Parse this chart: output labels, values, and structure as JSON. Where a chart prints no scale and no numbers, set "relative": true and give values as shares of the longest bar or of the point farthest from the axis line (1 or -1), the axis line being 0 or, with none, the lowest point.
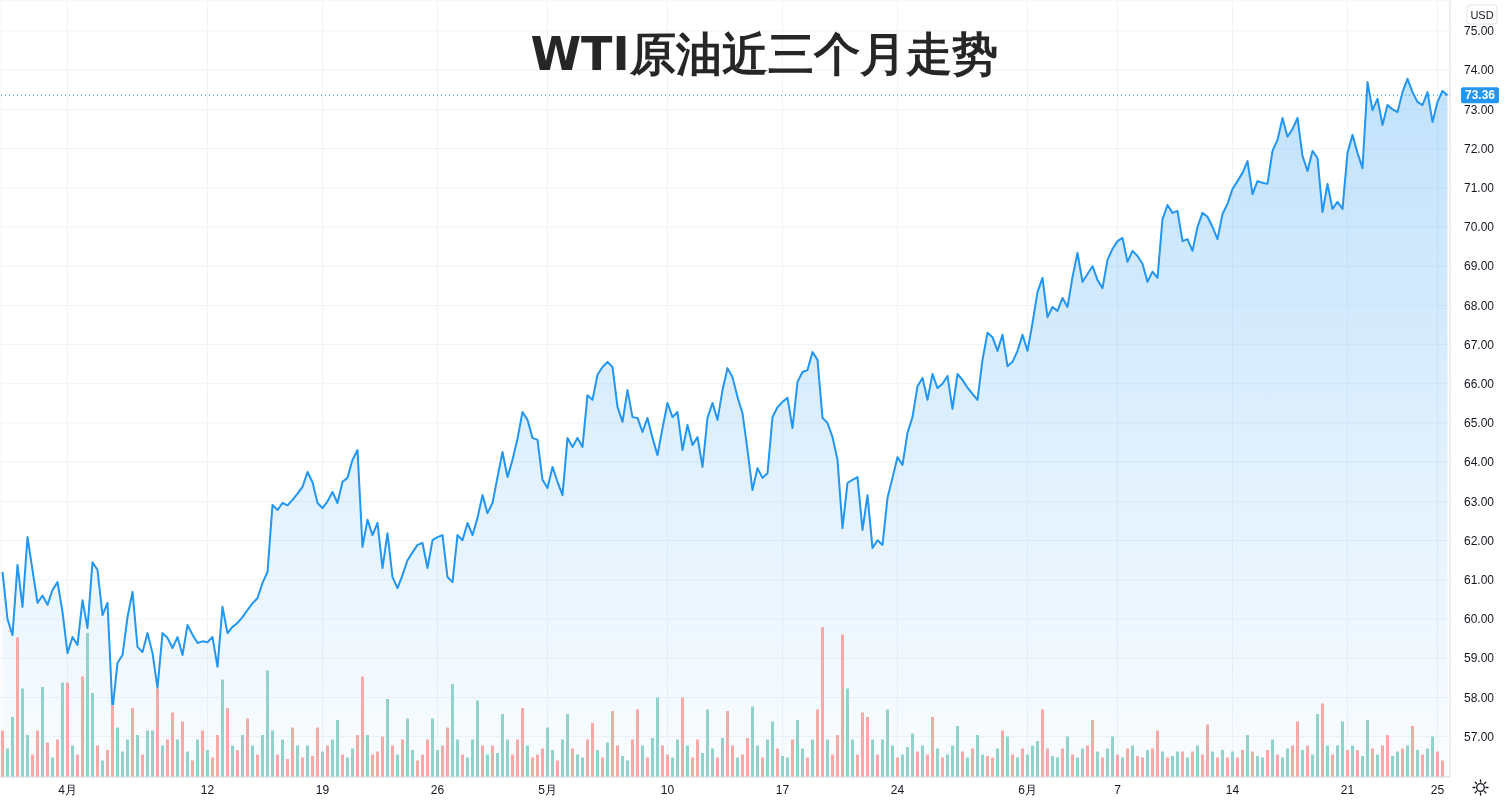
{
  "chart_data": [
    {
      "type": "area",
      "title": "WTI原油近三个月走势",
      "ylabel": "USD",
      "color": "#2196f3",
      "grid": true,
      "categories": [
        null,
        null,
        null,
        null,
        null,
        null,
        null,
        null,
        null,
        null,
        null,
        null,
        null,
        "4月",
        null,
        null,
        null,
        null,
        null,
        null,
        null,
        null,
        null,
        null,
        null,
        null,
        null,
        null,
        null,
        null,
        null,
        null,
        null,
        null,
        null,
        null,
        null,
        null,
        null,
        null,
        null,
        "12",
        null,
        null,
        null,
        null,
        null,
        null,
        null,
        null,
        null,
        null,
        null,
        null,
        null,
        null,
        null,
        null,
        null,
        null,
        null,
        null,
        null,
        null,
        "19",
        null,
        null,
        null,
        null,
        null,
        null,
        null,
        null,
        null,
        null,
        null,
        null,
        null,
        null,
        null,
        null,
        null,
        null,
        null,
        null,
        null,
        null,
        "26",
        null,
        null,
        null,
        null,
        null,
        null,
        null,
        null,
        null,
        null,
        null,
        null,
        null,
        null,
        null,
        null,
        null,
        null,
        null,
        null,
        null,
        "5月",
        null,
        null,
        null,
        null,
        null,
        null,
        null,
        null,
        null,
        null,
        null,
        null,
        null,
        null,
        null,
        null,
        null,
        null,
        null,
        null,
        null,
        null,
        null,
        "10",
        null,
        null,
        null,
        null,
        null,
        null,
        null,
        null,
        null,
        null,
        null,
        null,
        null,
        null,
        null,
        null,
        null,
        null,
        null,
        null,
        null,
        null,
        "17",
        null,
        null,
        null,
        null,
        null,
        null,
        null,
        null,
        null,
        null,
        null,
        null,
        null,
        null,
        null,
        null,
        null,
        null,
        null,
        null,
        null,
        null,
        "24",
        null,
        null,
        null,
        null,
        null,
        null,
        null,
        null,
        null,
        null,
        null,
        null,
        null,
        null,
        null,
        null,
        null,
        null,
        null,
        null,
        null,
        null,
        null,
        null,
        null,
        "6月",
        null,
        null,
        null,
        null,
        null,
        null,
        null,
        null,
        null,
        null,
        null,
        null,
        null,
        null,
        null,
        null,
        null,
        "7",
        null,
        null,
        null,
        null,
        null,
        null,
        null,
        null,
        null,
        null,
        null,
        null,
        null,
        null,
        null,
        null,
        null,
        null,
        null,
        null,
        null,
        null,
        "14",
        null,
        null,
        null,
        null,
        null,
        null,
        null,
        null,
        null,
        null,
        null,
        null,
        null,
        null,
        null,
        null,
        null,
        null,
        null,
        null,
        null,
        null,
        "21",
        null,
        null,
        null,
        null,
        null,
        null,
        null,
        null,
        null,
        null,
        null,
        null,
        null,
        null,
        null,
        null,
        null,
        "25",
        null,
        null
      ],
      "values": [
        61.2,
        60.0,
        59.59,
        61.38,
        60.31,
        62.09,
        61.25,
        60.41,
        60.6,
        60.36,
        60.74,
        60.94,
        60.18,
        59.13,
        59.54,
        59.34,
        60.48,
        59.77,
        61.45,
        61.25,
        60.1,
        60.41,
        57.68,
        58.88,
        59.08,
        60.05,
        60.69,
        59.29,
        59.16,
        59.64,
        59.13,
        58.24,
        59.64,
        59.52,
        59.26,
        59.54,
        59.08,
        59.85,
        59.6,
        59.39,
        59.43,
        59.41,
        59.54,
        58.78,
        60.31,
        59.64,
        59.8,
        59.9,
        60.05,
        60.23,
        60.4,
        60.53,
        60.92,
        61.2,
        62.91,
        62.78,
        62.96,
        62.9,
        63.04,
        63.2,
        63.37,
        63.75,
        63.49,
        62.96,
        62.83,
        63.0,
        63.24,
        62.96,
        63.5,
        63.6,
        64.06,
        64.31,
        61.84,
        62.53,
        62.14,
        62.45,
        61.3,
        62.19,
        61.07,
        60.79,
        61.12,
        61.5,
        61.7,
        61.89,
        61.94,
        61.3,
        62.01,
        62.09,
        62.14,
        61.07,
        60.94,
        62.14,
        62.01,
        62.45,
        62.14,
        62.58,
        63.16,
        62.7,
        62.96,
        63.62,
        64.26,
        63.62,
        64.06,
        64.6,
        65.28,
        65.08,
        64.62,
        64.57,
        63.55,
        63.34,
        63.88,
        63.5,
        63.16,
        64.62,
        64.39,
        64.62,
        64.39,
        65.71,
        65.59,
        66.23,
        66.43,
        66.56,
        66.43,
        65.41,
        65.03,
        65.84,
        65.15,
        65.13,
        64.77,
        65.13,
        64.62,
        64.18,
        64.87,
        65.51,
        65.15,
        65.28,
        64.31,
        64.95,
        64.44,
        64.64,
        63.88,
        65.13,
        65.51,
        65.08,
        65.84,
        66.4,
        66.17,
        65.66,
        65.25,
        64.31,
        63.29,
        63.85,
        63.6,
        63.72,
        65.15,
        65.4,
        65.54,
        65.64,
        64.87,
        66.05,
        66.3,
        66.35,
        66.81,
        66.61,
        65.13,
        65.0,
        64.64,
        64.06,
        62.32,
        63.47,
        63.55,
        63.62,
        62.27,
        63.16,
        61.81,
        62.01,
        61.89,
        63.09,
        63.6,
        64.13,
        63.93,
        64.75,
        65.15,
        65.94,
        66.15,
        65.59,
        66.25,
        65.89,
        66.0,
        66.2,
        65.36,
        66.25,
        66.1,
        65.9,
        65.74,
        65.59,
        66.61,
        67.3,
        67.19,
        66.84,
        67.25,
        66.45,
        66.56,
        66.84,
        67.25,
        66.84,
        67.55,
        68.34,
        68.7,
        67.7,
        67.96,
        67.86,
        68.19,
        67.96,
        68.72,
        69.34,
        68.6,
        68.8,
        69.0,
        68.65,
        68.44,
        69.16,
        69.44,
        69.64,
        69.72,
        69.11,
        69.39,
        69.26,
        69.06,
        68.6,
        68.86,
        68.7,
        70.2,
        70.56,
        70.36,
        70.41,
        69.64,
        69.69,
        69.39,
        70.0,
        70.36,
        70.26,
        70.0,
        69.69,
        70.33,
        70.59,
        70.97,
        71.17,
        71.38,
        71.68,
        70.84,
        71.17,
        71.13,
        71.1,
        71.94,
        72.22,
        72.78,
        72.3,
        72.5,
        72.78,
        71.81,
        71.43,
        71.94,
        71.76,
        70.38,
        71.1,
        70.46,
        70.64,
        70.46,
        71.89,
        72.35,
        71.89,
        71.5,
        73.7,
        72.98,
        73.27,
        72.6,
        73.11,
        73.0,
        72.93,
        73.44,
        73.78,
        73.44,
        73.19,
        73.11,
        73.44,
        72.68,
        73.19,
        73.47,
        73.36
      ],
      "ylim": [
        55.97,
        75.79
      ],
      "yticks": [
        {
          "value": 57,
          "label": "57.00"
        },
        {
          "value": 58,
          "label": "58.00"
        },
        {
          "value": 59,
          "label": "59.00"
        },
        {
          "value": 60,
          "label": "60.00"
        },
        {
          "value": 61,
          "label": "61.00"
        },
        {
          "value": 62,
          "label": "62.00"
        },
        {
          "value": 63,
          "label": "63.00"
        },
        {
          "value": 64,
          "label": "64.00"
        },
        {
          "value": 65,
          "label": "65.00"
        },
        {
          "value": 66,
          "label": "66.00"
        },
        {
          "value": 67,
          "label": "67.00"
        },
        {
          "value": 68,
          "label": "68.00"
        },
        {
          "value": 69,
          "label": "69.00"
        },
        {
          "value": 70,
          "label": "70.00"
        },
        {
          "value": 71,
          "label": "71.00"
        },
        {
          "value": 72,
          "label": "72.00"
        },
        {
          "value": 73,
          "label": "73.00"
        },
        {
          "value": 74,
          "label": "74.00"
        },
        {
          "value": 75,
          "label": "75.00"
        }
      ],
      "ref_lines": [
        {
          "axis": "y",
          "value": 73.36,
          "label": "73.36",
          "color": "#2196f3",
          "line_style": "dotted"
        }
      ]
    },
    {
      "type": "bar",
      "relative": true,
      "tick_labels": false,
      "categories": [
        null,
        null,
        null,
        null,
        null,
        null,
        null,
        null,
        null,
        null,
        null,
        null,
        null,
        null,
        null,
        null,
        null,
        null,
        null,
        null,
        null,
        null,
        null,
        null,
        null,
        null,
        null,
        null,
        null,
        null,
        null,
        null,
        null,
        null,
        null,
        null,
        null,
        null,
        null,
        null,
        null,
        null,
        null,
        null,
        null,
        null,
        null,
        null,
        null,
        null,
        null,
        null,
        null,
        null,
        null,
        null,
        null,
        null,
        null,
        null,
        null,
        null,
        null,
        null,
        null,
        null,
        null,
        null,
        null,
        null,
        null,
        null,
        null,
        null,
        null,
        null,
        null,
        null,
        null,
        null,
        null,
        null,
        null,
        null,
        null,
        null,
        null,
        null,
        null,
        null,
        null,
        null,
        null,
        null,
        null,
        null,
        null,
        null,
        null,
        null,
        null,
        null,
        null,
        null,
        null,
        null,
        null,
        null,
        null,
        null,
        null,
        null,
        null,
        null,
        null,
        null,
        null,
        null,
        null,
        null,
        null,
        null,
        null,
        null,
        null,
        null,
        null,
        null,
        null,
        null,
        null,
        null,
        null,
        null,
        null,
        null,
        null,
        null,
        null,
        null,
        null,
        null,
        null,
        null,
        null,
        null,
        null,
        null,
        null,
        null,
        null,
        null,
        null,
        null,
        null,
        null,
        null,
        null,
        null,
        null,
        null,
        null,
        null,
        null,
        null,
        null,
        null,
        null,
        null,
        null,
        null,
        null,
        null,
        null,
        null,
        null,
        null,
        null,
        null,
        null,
        null,
        null,
        null,
        null,
        null,
        null,
        null,
        null,
        null,
        null,
        null,
        null,
        null,
        null,
        null,
        null,
        null,
        null,
        null,
        null,
        null,
        null,
        null,
        null,
        null,
        null,
        null,
        null,
        null,
        null,
        null,
        null,
        null,
        null,
        null,
        null,
        null,
        null,
        null,
        null,
        null,
        null,
        null,
        null,
        null,
        null,
        null,
        null,
        null,
        null,
        null,
        null,
        null,
        null,
        null,
        null,
        null,
        null,
        null,
        null,
        null,
        null,
        null,
        null,
        null,
        null,
        null,
        null,
        null,
        null,
        null,
        null,
        null,
        null,
        null,
        null,
        null,
        null,
        null,
        null,
        null,
        null,
        null,
        null,
        null,
        null,
        null,
        null,
        null,
        null,
        null,
        null,
        null,
        null,
        null,
        null,
        null,
        null,
        null,
        null,
        null,
        null,
        null,
        null,
        null,
        null,
        null,
        null,
        null,
        null
      ],
      "values": [
        0.31,
        0.19,
        0.4,
        0.93,
        0.59,
        0.28,
        0.15,
        0.31,
        0.6,
        0.23,
        0.13,
        0.25,
        0.63,
        0.63,
        0.21,
        0.15,
        0.67,
        0.96,
        0.56,
        0.21,
        0.11,
        0.18,
        0.48,
        0.33,
        0.17,
        0.25,
        0.46,
        0.28,
        0.15,
        0.31,
        0.31,
        0.59,
        0.21,
        0.25,
        0.43,
        0.25,
        0.37,
        0.17,
        0.11,
        0.25,
        0.31,
        0.18,
        0.13,
        0.28,
        0.65,
        0.46,
        0.21,
        0.18,
        0.28,
        0.39,
        0.21,
        0.15,
        0.28,
        0.71,
        0.31,
        0.15,
        0.25,
        0.12,
        0.33,
        0.21,
        0.13,
        0.21,
        0.14,
        0.33,
        0.17,
        0.21,
        0.25,
        0.38,
        0.15,
        0.13,
        0.19,
        0.28,
        0.67,
        0.28,
        0.15,
        0.17,
        0.27,
        0.52,
        0.21,
        0.15,
        0.25,
        0.39,
        0.18,
        0.11,
        0.15,
        0.25,
        0.39,
        0.18,
        0.21,
        0.33,
        0.62,
        0.25,
        0.15,
        0.13,
        0.25,
        0.51,
        0.21,
        0.15,
        0.21,
        0.16,
        0.42,
        0.25,
        0.15,
        0.25,
        0.46,
        0.21,
        0.13,
        0.15,
        0.19,
        0.33,
        0.18,
        0.11,
        0.25,
        0.42,
        0.19,
        0.15,
        0.13,
        0.25,
        0.36,
        0.18,
        0.13,
        0.23,
        0.44,
        0.21,
        0.14,
        0.11,
        0.25,
        0.45,
        0.21,
        0.13,
        0.26,
        0.53,
        0.21,
        0.15,
        0.13,
        0.25,
        0.53,
        0.21,
        0.13,
        0.25,
        0.16,
        0.45,
        0.19,
        0.13,
        0.26,
        0.44,
        0.21,
        0.13,
        0.15,
        0.26,
        0.47,
        0.21,
        0.13,
        0.25,
        0.37,
        0.19,
        0.14,
        0.13,
        0.25,
        0.38,
        0.19,
        0.13,
        0.25,
        0.45,
        1,
        0.25,
        0.15,
        0.28,
        0.95,
        0.59,
        0.25,
        0.15,
        0.43,
        0.4,
        0.25,
        0.15,
        0.25,
        0.45,
        0.21,
        0.13,
        0.15,
        0.2,
        0.29,
        0.17,
        0.21,
        0.15,
        0.4,
        0.19,
        0.13,
        0.15,
        0.21,
        0.34,
        0.17,
        0.13,
        0.19,
        0.28,
        0.15,
        0.14,
        0.13,
        0.19,
        0.31,
        0.27,
        0.15,
        0.13,
        0.19,
        0.15,
        0.21,
        0.24,
        0.45,
        0.19,
        0.14,
        0.13,
        0.19,
        0.27,
        0.15,
        0.13,
        0.19,
        0.21,
        0.38,
        0.17,
        0.13,
        0.19,
        0.27,
        0.15,
        0.13,
        0.19,
        0.21,
        0.14,
        0.13,
        0.18,
        0.19,
        0.31,
        0.17,
        0.13,
        0.14,
        0.17,
        0.17,
        0.13,
        0.17,
        0.21,
        0.15,
        0.35,
        0.17,
        0.13,
        0.18,
        0.13,
        0.17,
        0.13,
        0.18,
        0.28,
        0.17,
        0.14,
        0.13,
        0.18,
        0.25,
        0.15,
        0.13,
        0.19,
        0.21,
        0.37,
        0.18,
        0.21,
        0.15,
        0.42,
        0.49,
        0.21,
        0.15,
        0.21,
        0.37,
        0.18,
        0.21,
        0.18,
        0.14,
        0.38,
        0.19,
        0.15,
        0.21,
        0.28,
        0.14,
        0.17,
        0.19,
        0.21,
        0.34,
        0.18,
        0.15,
        0.19,
        0.27,
        0.17,
        0.11,
        null
      ],
      "colors": [
        "#f7a9a7",
        "#92d2cc",
        "#92d2cc",
        "#f7a9a7",
        "#92d2cc",
        "#92d2cc",
        "#f7a9a7",
        "#f7a9a7",
        "#92d2cc",
        "#f7a9a7",
        "#92d2cc",
        "#f7a9a7",
        "#92d2cc",
        "#f7a9a7",
        "#92d2cc",
        "#f7a9a7",
        "#f7a9a7",
        "#92d2cc",
        "#92d2cc",
        "#f7a9a7",
        "#92d2cc",
        "#f7a9a7",
        "#f7a9a7",
        "#92d2cc",
        "#92d2cc",
        "#92d2cc",
        "#f7a9a7",
        "#92d2cc",
        "#f7a9a7",
        "#92d2cc",
        "#92d2cc",
        "#f7a9a7",
        "#92d2cc",
        "#f7a9a7",
        "#f7a9a7",
        "#92d2cc",
        "#f7a9a7",
        "#92d2cc",
        "#f7a9a7",
        "#92d2cc",
        "#f7a9a7",
        "#92d2cc",
        "#f7a9a7",
        "#f7a9a7",
        "#92d2cc",
        "#f7a9a7",
        "#92d2cc",
        "#f7a9a7",
        "#92d2cc",
        "#f7a9a7",
        "#92d2cc",
        "#f7a9a7",
        "#92d2cc",
        "#92d2cc",
        "#92d2cc",
        "#f7a9a7",
        "#92d2cc",
        "#f7a9a7",
        "#f7a9a7",
        "#92d2cc",
        "#f7a9a7",
        "#92d2cc",
        "#f7a9a7",
        "#f7a9a7",
        "#92d2cc",
        "#f7a9a7",
        "#92d2cc",
        "#92d2cc",
        "#f7a9a7",
        "#92d2cc",
        "#92d2cc",
        "#f7a9a7",
        "#f7a9a7",
        "#92d2cc",
        "#f7a9a7",
        "#f7a9a7",
        "#f7a9a7",
        "#92d2cc",
        "#f7a9a7",
        "#92d2cc",
        "#f7a9a7",
        "#92d2cc",
        "#92d2cc",
        "#f7a9a7",
        "#f7a9a7",
        "#f7a9a7",
        "#92d2cc",
        "#92d2cc",
        "#f7a9a7",
        "#f7a9a7",
        "#92d2cc",
        "#92d2cc",
        "#f7a9a7",
        "#92d2cc",
        "#92d2cc",
        "#92d2cc",
        "#f7a9a7",
        "#92d2cc",
        "#f7a9a7",
        "#92d2cc",
        "#92d2cc",
        "#92d2cc",
        "#f7a9a7",
        "#f7a9a7",
        "#f7a9a7",
        "#92d2cc",
        "#f7a9a7",
        "#f7a9a7",
        "#f7a9a7",
        "#92d2cc",
        "#92d2cc",
        "#f7a9a7",
        "#92d2cc",
        "#92d2cc",
        "#f7a9a7",
        "#92d2cc",
        "#92d2cc",
        "#f7a9a7",
        "#f7a9a7",
        "#92d2cc",
        "#f7a9a7",
        "#92d2cc",
        "#f7a9a7",
        "#f7a9a7",
        "#92d2cc",
        "#92d2cc",
        "#f7a9a7",
        "#f7a9a7",
        "#92d2cc",
        "#f7a9a7",
        "#92d2cc",
        "#92d2cc",
        "#f7a9a7",
        "#f7a9a7",
        "#92d2cc",
        "#92d2cc",
        "#f7a9a7",
        "#92d2cc",
        "#f7a9a7",
        "#f7a9a7",
        "#92d2cc",
        "#92d2cc",
        "#92d2cc",
        "#f7a9a7",
        "#92d2cc",
        "#f7a9a7",
        "#f7a9a7",
        "#92d2cc",
        "#f7a9a7",
        "#f7a9a7",
        "#92d2cc",
        "#92d2cc",
        "#f7a9a7",
        "#92d2cc",
        "#92d2cc",
        "#f7a9a7",
        "#92d2cc",
        "#92d2cc",
        "#f7a9a7",
        "#92d2cc",
        "#92d2cc",
        "#f7a9a7",
        "#92d2cc",
        "#f7a9a7",
        "#f7a9a7",
        "#92d2cc",
        "#f7a9a7",
        "#f7a9a7",
        "#f7a9a7",
        "#92d2cc",
        "#92d2cc",
        "#f7a9a7",
        "#f7a9a7",
        "#f7a9a7",
        "#92d2cc",
        "#f7a9a7",
        "#92d2cc",
        "#92d2cc",
        "#92d2cc",
        "#f7a9a7",
        "#92d2cc",
        "#92d2cc",
        "#92d2cc",
        "#f7a9a7",
        "#92d2cc",
        "#f7a9a7",
        "#f7a9a7",
        "#92d2cc",
        "#f7a9a7",
        "#92d2cc",
        "#92d2cc",
        "#92d2cc",
        "#f7a9a7",
        "#92d2cc",
        "#f7a9a7",
        "#92d2cc",
        "#92d2cc",
        "#f7a9a7",
        "#f7a9a7",
        "#92d2cc",
        "#f7a9a7",
        "#92d2cc",
        "#f7a9a7",
        "#92d2cc",
        "#f7a9a7",
        "#92d2cc",
        "#92d2cc",
        "#92d2cc",
        "#f7a9a7",
        "#f7a9a7",
        "#92d2cc",
        "#92d2cc",
        "#f7a9a7",
        "#92d2cc",
        "#f7a9a7",
        "#92d2cc",
        "#92d2cc",
        "#f7a9a7",
        "#f7a9a7",
        "#92d2cc",
        "#f7a9a7",
        "#92d2cc",
        "#92d2cc",
        "#f7a9a7",
        "#92d2cc",
        "#f7a9a7",
        "#92d2cc",
        "#f7a9a7",
        "#f7a9a7",
        "#92d2cc",
        "#f7a9a7",
        "#f7a9a7",
        "#92d2cc",
        "#f7a9a7",
        "#92d2cc",
        "#92d2cc",
        "#f7a9a7",
        "#92d2cc",
        "#f7a9a7",
        "#92d2cc",
        "#f7a9a7",
        "#f7a9a7",
        "#92d2cc",
        "#f7a9a7",
        "#92d2cc",
        "#f7a9a7",
        "#92d2cc",
        "#f7a9a7",
        "#f7a9a7",
        "#92d2cc",
        "#f7a9a7",
        "#92d2cc",
        "#92d2cc",
        "#f7a9a7",
        "#92d2cc",
        "#f7a9a7",
        "#92d2cc",
        "#92d2cc",
        "#f7a9a7",
        "#f7a9a7",
        "#92d2cc",
        "#f7a9a7",
        "#92d2cc",
        "#92d2cc",
        "#f7a9a7",
        "#92d2cc",
        "#f7a9a7",
        "#92d2cc",
        "#92d2cc",
        "#f7a9a7",
        "#92d2cc",
        "#f7a9a7",
        "#92d2cc",
        "#92d2cc",
        "#f7a9a7",
        "#92d2cc",
        "#f7a9a7",
        "#f7a9a7",
        "#92d2cc",
        "#92d2cc",
        "#f7a9a7",
        "#92d2cc",
        "#f7a9a7",
        "#92d2cc",
        "#f7a9a7",
        "#92d2cc",
        "#92d2cc",
        "#f7a9a7",
        "#f7a9a7",
        null
      ]
    }
  ]
}
